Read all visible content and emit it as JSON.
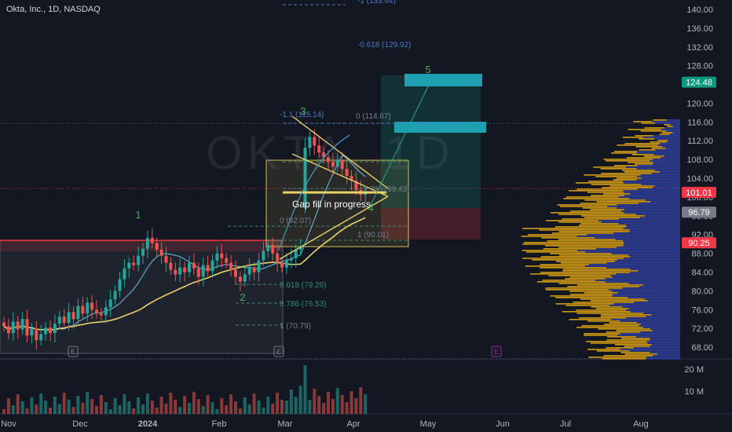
{
  "header": {
    "title": "Okta, Inc., 1D, NASDAQ"
  },
  "watermark": "OKTA, 1D",
  "chart_data": {
    "type": "line",
    "title": "Okta, Inc., 1D, NASDAQ",
    "xlabel": "",
    "ylabel": "",
    "ylim": [
      64.5,
      141.5
    ],
    "x_tick_labels": [
      "Nov",
      "Dec",
      "2024",
      "Feb",
      "Mar",
      "Apr",
      "May",
      "Jun",
      "Jul",
      "Aug"
    ],
    "y_tick_labels": [
      "140.00",
      "136.00",
      "132.00",
      "128.00",
      "124.00",
      "120.00",
      "116.00",
      "112.00",
      "108.00",
      "104.00",
      "100.00",
      "96.00",
      "92.00",
      "88.00",
      "84.00",
      "80.00",
      "76.00",
      "72.00",
      "68.00"
    ],
    "y_tick_values": [
      140,
      136,
      132,
      128,
      124,
      120,
      116,
      112,
      108,
      104,
      100,
      96,
      92,
      88,
      84,
      80,
      76,
      72,
      68
    ],
    "volume_axis_labels": [
      "20 M",
      "10 M"
    ],
    "price_badges": [
      {
        "label": "124.48",
        "value": 124.48,
        "color": "#089981"
      },
      {
        "label": "101.01",
        "value": 101.01,
        "color": "#f23645"
      },
      {
        "label": "96.79",
        "value": 96.79,
        "color": "#787b86"
      },
      {
        "label": "90.25",
        "value": 90.25,
        "color": "#f23645"
      }
    ],
    "fib_labels": [
      "-1 (133.64)",
      "-0.618 (129.92)",
      "0 (114.67)",
      "-1.1 (115.14)",
      "0.618 (79.26)",
      "0.786 (76.53)",
      "1 (70.79)",
      "0 (92.07)",
      "1 (90.01)",
      "0.786 (99.43)"
    ],
    "wave_labels": [
      "1",
      "2",
      "3",
      "4",
      "5"
    ],
    "annotations": [
      "Gap fill in progress"
    ],
    "earnings_markers": [
      "E",
      "E",
      "E"
    ],
    "colors": {
      "up": "#26a69a",
      "down": "#ef5350",
      "ma_fast": "#5fa8c8",
      "ma_slow": "#e8d36a",
      "background": "#131722"
    },
    "close_series": [
      72.5,
      71.0,
      73.5,
      71.8,
      74.0,
      70.5,
      72.0,
      69.5,
      70.8,
      72.2,
      71.0,
      73.0,
      74.5,
      73.2,
      75.5,
      74.0,
      76.8,
      75.2,
      77.5,
      76.0,
      75.2,
      74.8,
      76.5,
      78.2,
      80.0,
      82.5,
      84.8,
      86.0,
      85.5,
      87.5,
      89.0,
      91.3,
      90.2,
      88.8,
      87.5,
      86.0,
      84.5,
      83.5,
      85.0,
      84.0,
      86.0,
      84.8,
      83.0,
      85.5,
      84.2,
      86.5,
      88.0,
      87.0,
      86.0,
      84.5,
      83.0,
      82.0,
      83.5,
      85.0,
      84.0,
      86.5,
      88.5,
      89.8,
      88.0,
      86.0,
      85.0,
      86.5,
      87.0,
      88.8,
      89.5,
      110.5,
      112.8,
      111.0,
      109.5,
      108.5,
      107.5,
      106.5,
      108.0,
      106.0,
      104.5,
      103.5,
      101.5,
      100.5,
      101.0
    ]
  }
}
